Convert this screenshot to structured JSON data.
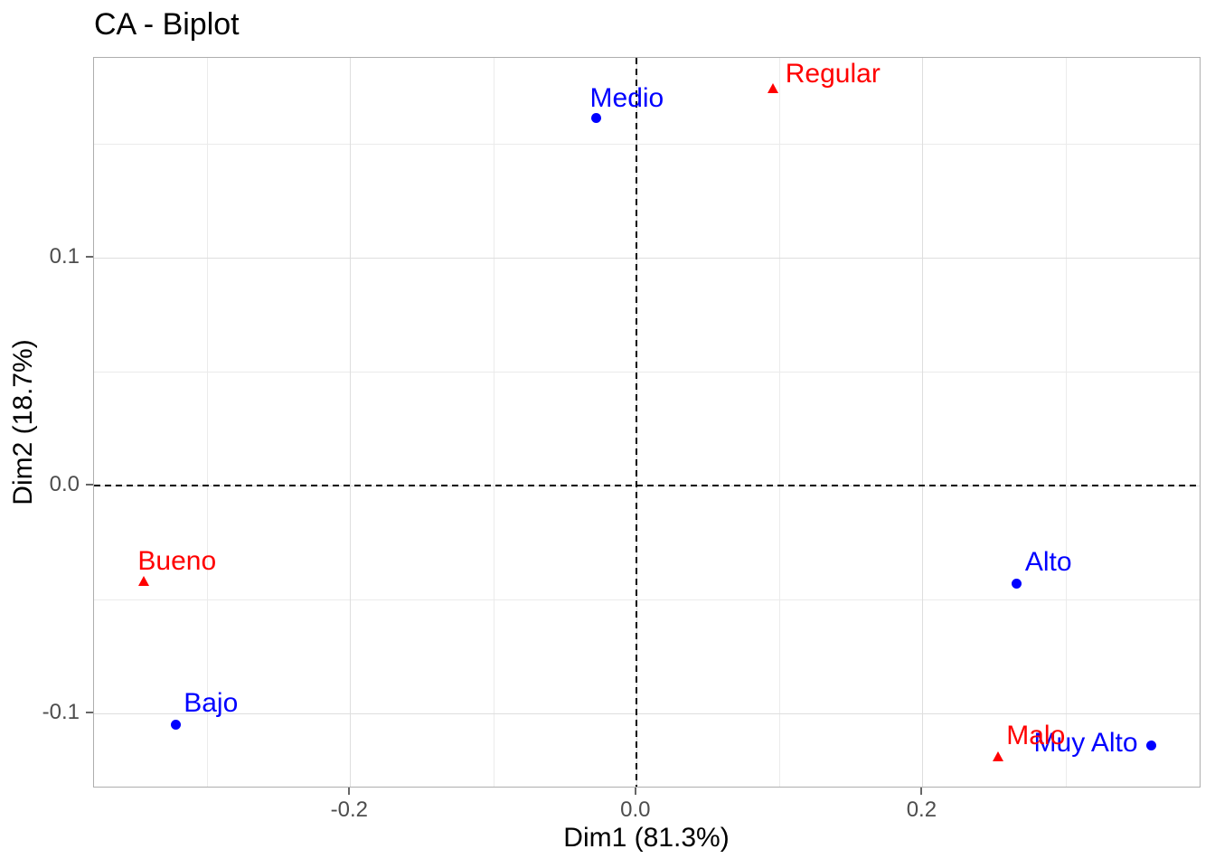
{
  "chart_data": {
    "type": "scatter",
    "title": "CA - Biplot",
    "xlabel": "Dim1 (81.3%)",
    "ylabel": "Dim2 (18.7%)",
    "xlim": [
      -0.379,
      0.395
    ],
    "ylim": [
      -0.133,
      0.1875
    ],
    "grid": true,
    "legend": "none",
    "x_major_ticks": [
      -0.2,
      0.0,
      0.2
    ],
    "x_tick_labels": [
      "-0.2",
      "0.0",
      "0.2"
    ],
    "x_minor_ticks": [
      -0.3,
      -0.1,
      0.1,
      0.3
    ],
    "y_major_ticks": [
      -0.1,
      0.0,
      0.1
    ],
    "y_tick_labels": [
      "-0.1",
      "0.0",
      "0.1"
    ],
    "y_minor_ticks": [
      -0.05,
      0.05,
      0.15
    ],
    "reference_lines": {
      "x": 0.0,
      "y": 0.0,
      "style": "dashed",
      "color": "#000000"
    },
    "series": [
      {
        "name": "rows",
        "marker": "circle",
        "color": "#0000ff",
        "points": [
          {
            "label": "Medio",
            "x": -0.028,
            "y": 0.161,
            "label_pos": "above"
          },
          {
            "label": "Bajo",
            "x": -0.322,
            "y": -0.105,
            "label_pos": "above-right"
          },
          {
            "label": "Alto",
            "x": 0.266,
            "y": -0.043,
            "label_pos": "above-right"
          },
          {
            "label": "Muy Alto",
            "x": 0.36,
            "y": -0.114,
            "label_pos": "left"
          }
        ]
      },
      {
        "name": "columns",
        "marker": "triangle",
        "color": "#ff0000",
        "points": [
          {
            "label": "Regular",
            "x": 0.096,
            "y": 0.174,
            "label_pos": "right"
          },
          {
            "label": "Bueno",
            "x": -0.344,
            "y": -0.042,
            "label_pos": "above"
          },
          {
            "label": "Malo",
            "x": 0.253,
            "y": -0.119,
            "label_pos": "above-right"
          }
        ]
      }
    ],
    "colors": {
      "rows": "#0000ff",
      "columns": "#ff0000",
      "grid_major": "#dedede",
      "grid_minor": "#ebebeb",
      "panel_border": "#aeaeae",
      "tick_text": "#4d4d4d",
      "reference_line": "#000000",
      "background": "#ffffff"
    }
  }
}
